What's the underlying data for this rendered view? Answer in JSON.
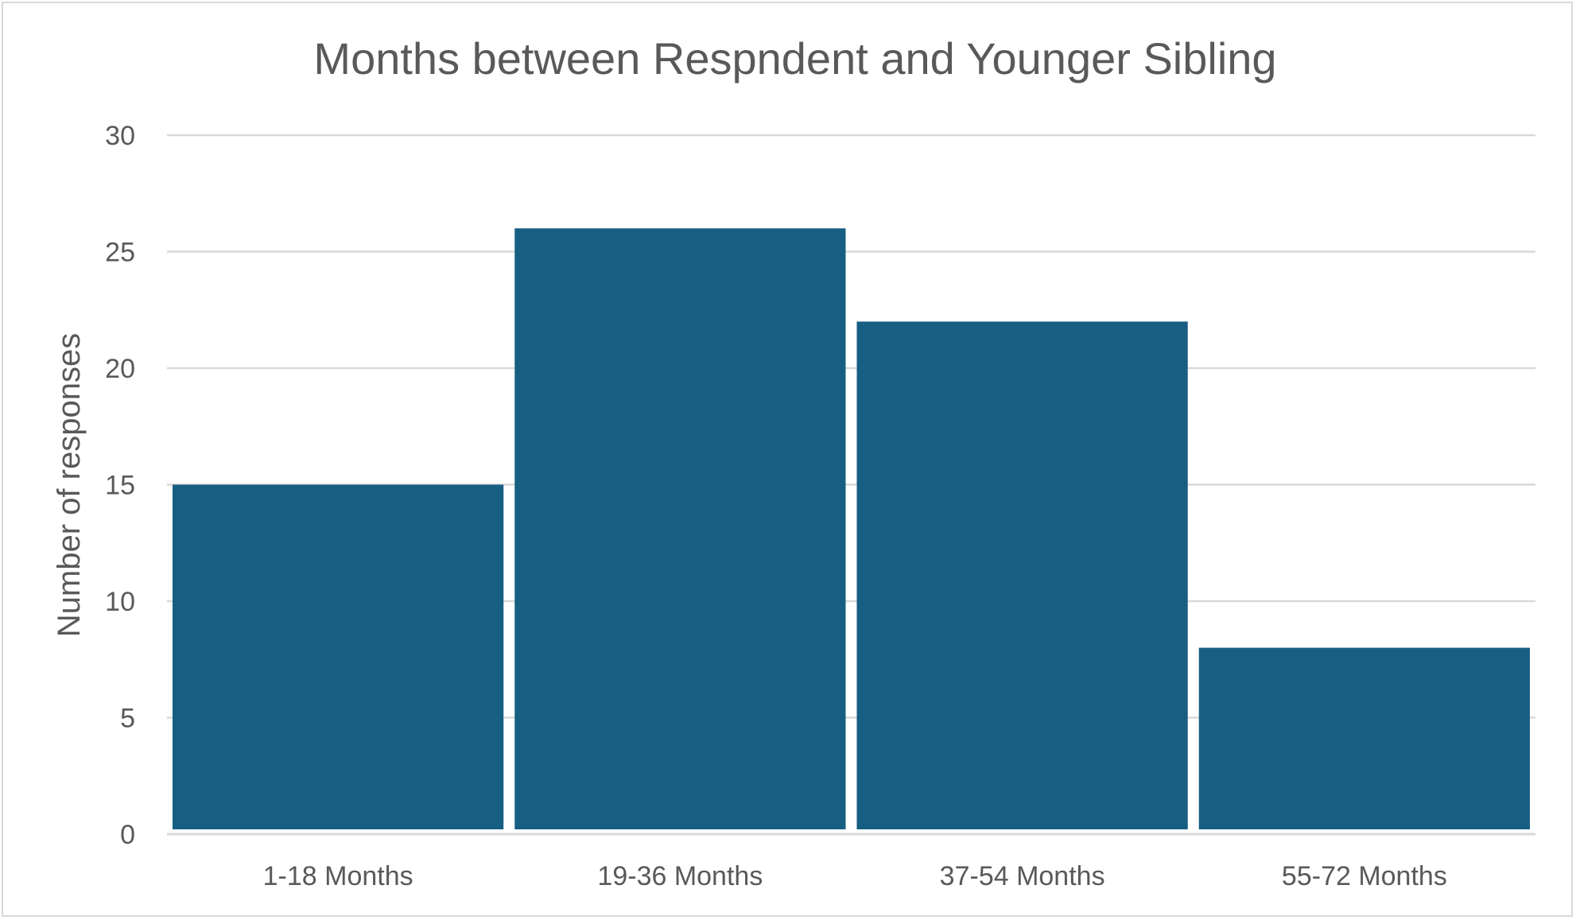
{
  "chart_data": {
    "type": "bar",
    "title": "Months between Respndent and Younger Sibling",
    "xlabel": "",
    "ylabel": "Number of responses",
    "categories": [
      "1-18 Months",
      "19-36 Months",
      "37-54 Months",
      "55-72 Months"
    ],
    "values": [
      15,
      26,
      22,
      8
    ],
    "ylim": [
      0,
      30
    ],
    "yticks": [
      "0",
      "5",
      "10",
      "15",
      "20",
      "25",
      "30"
    ],
    "grid": true,
    "legend": "none",
    "colors": {
      "bar": "#175f82",
      "grid": "#d9d9d9",
      "text": "#595959"
    }
  }
}
